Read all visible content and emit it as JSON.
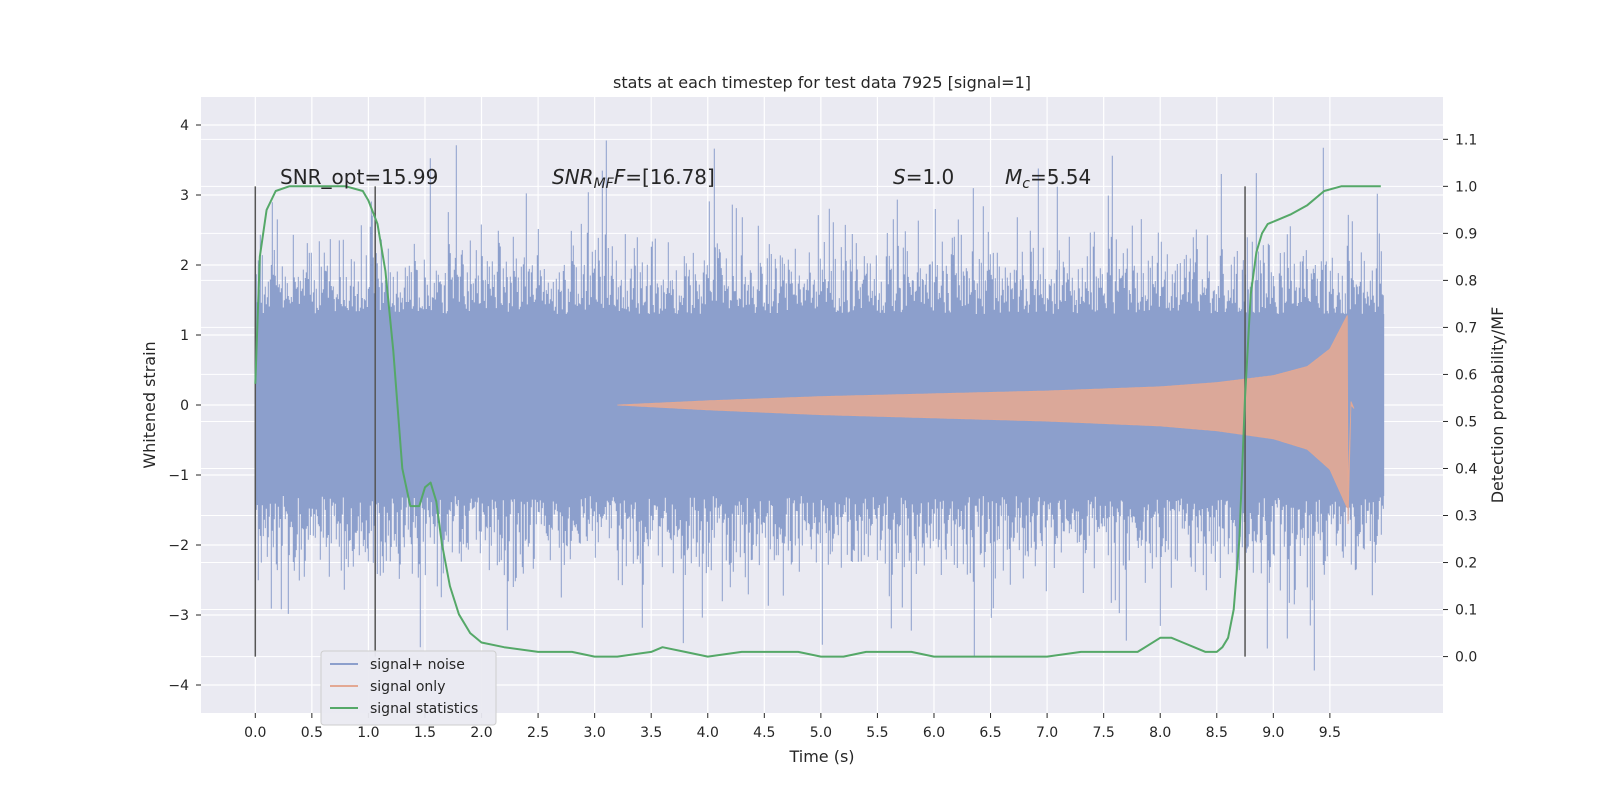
{
  "chart_data": {
    "type": "line",
    "title": "stats at each timestep for test data 7925 [signal=1]",
    "xlabel": "Time (s)",
    "ylabel": "Whitened strain",
    "y2label": "Detection probability/MF",
    "xlim": [
      -0.48,
      10.5
    ],
    "ylim": [
      -4.4,
      4.4
    ],
    "y2lim": [
      -0.12,
      1.19
    ],
    "x_ticks": [
      "0.0",
      "0.5",
      "1.0",
      "1.5",
      "2.0",
      "2.5",
      "3.0",
      "3.5",
      "4.0",
      "4.5",
      "5.0",
      "5.5",
      "6.0",
      "6.5",
      "7.0",
      "7.5",
      "8.0",
      "8.5",
      "9.0",
      "9.5"
    ],
    "y_ticks": [
      "4",
      "3",
      "2",
      "1",
      "0",
      "−1",
      "−2",
      "−3",
      "−4"
    ],
    "y2_ticks": [
      "1.1",
      "1.0",
      "0.9",
      "0.8",
      "0.7",
      "0.6",
      "0.5",
      "0.4",
      "0.3",
      "0.2",
      "0.1",
      "0.0"
    ],
    "grid": true,
    "legend_position": "lower-left",
    "annotations": {
      "snr_opt": "SNR_opt=15.99",
      "snr_mf_base": "SNR",
      "snr_mf_sub": "MF",
      "snr_mf_rest": "=[16.78]",
      "s_sym": "S",
      "s_val": "=1.0",
      "mc_sym": "M",
      "mc_sub": "c",
      "mc_val": "=5.54"
    },
    "vertical_markers": [
      0.0,
      1.06,
      8.75
    ],
    "series": [
      {
        "name": "signal+ noise",
        "color": "#8c9fcc",
        "kind": "noise",
        "x_range": [
          0.0,
          9.98
        ],
        "typical_amplitude": 1.3,
        "peak_max": 4.05,
        "peak_min": -4.0
      },
      {
        "name": "signal only",
        "color": "#e3a893",
        "kind": "chirp",
        "onset": 3.2,
        "merger": 9.66,
        "envelope_points": [
          [
            3.2,
            0.0
          ],
          [
            4.0,
            0.06
          ],
          [
            5.0,
            0.12
          ],
          [
            6.0,
            0.16
          ],
          [
            7.0,
            0.2
          ],
          [
            8.0,
            0.26
          ],
          [
            8.5,
            0.32
          ],
          [
            9.0,
            0.42
          ],
          [
            9.3,
            0.55
          ],
          [
            9.5,
            0.8
          ],
          [
            9.66,
            1.3
          ]
        ]
      },
      {
        "name": "signal statistics",
        "color": "#55a868",
        "kind": "line",
        "axis": "right",
        "x": [
          0.0,
          0.04,
          0.1,
          0.18,
          0.3,
          0.5,
          0.8,
          0.95,
          1.0,
          1.08,
          1.15,
          1.22,
          1.3,
          1.37,
          1.45,
          1.5,
          1.55,
          1.6,
          1.65,
          1.72,
          1.8,
          1.9,
          2.0,
          2.2,
          2.5,
          2.8,
          3.0,
          3.2,
          3.5,
          3.6,
          3.8,
          4.0,
          4.3,
          4.5,
          4.8,
          5.0,
          5.2,
          5.4,
          5.6,
          5.8,
          6.0,
          6.2,
          6.5,
          7.0,
          7.3,
          7.5,
          7.8,
          8.0,
          8.1,
          8.2,
          8.3,
          8.4,
          8.5,
          8.55,
          8.6,
          8.65,
          8.7,
          8.75,
          8.8,
          8.85,
          8.9,
          8.95,
          9.05,
          9.15,
          9.3,
          9.45,
          9.6,
          9.75,
          9.9,
          9.95
        ],
        "y": [
          0.58,
          0.85,
          0.95,
          0.99,
          1.0,
          1.0,
          1.0,
          0.99,
          0.97,
          0.92,
          0.82,
          0.65,
          0.4,
          0.32,
          0.32,
          0.36,
          0.37,
          0.33,
          0.24,
          0.15,
          0.09,
          0.05,
          0.03,
          0.02,
          0.01,
          0.01,
          0.0,
          0.0,
          0.01,
          0.02,
          0.01,
          0.0,
          0.01,
          0.01,
          0.01,
          0.0,
          0.0,
          0.01,
          0.01,
          0.01,
          0.0,
          0.0,
          0.0,
          0.0,
          0.01,
          0.01,
          0.01,
          0.04,
          0.04,
          0.03,
          0.02,
          0.01,
          0.01,
          0.02,
          0.04,
          0.1,
          0.25,
          0.55,
          0.77,
          0.86,
          0.9,
          0.92,
          0.93,
          0.94,
          0.96,
          0.99,
          1.0,
          1.0,
          1.0,
          1.0
        ]
      }
    ]
  }
}
